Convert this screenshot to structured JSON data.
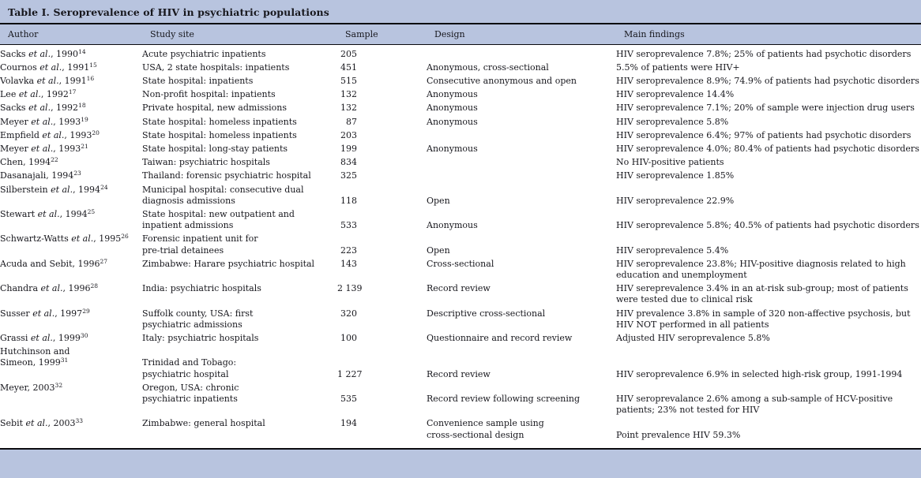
{
  "title": "Table I. Seroprevalence of HIV in psychiatric populations",
  "colors": {
    "band": "#b8c4df",
    "rule": "#0b0b0f",
    "text": "#17171d"
  },
  "table": {
    "columns": [
      "Author",
      "Study site",
      "Sample",
      "Design",
      "Main findings"
    ],
    "rows": [
      {
        "author": [
          "Sacks *et al.*, 1990^14^"
        ],
        "site": [
          "Acute psychiatric inpatients"
        ],
        "sample": [
          "205"
        ],
        "design": [
          ""
        ],
        "findings": [
          "HIV seroprevalence 7.8%; 25% of patients had psychotic disorders"
        ]
      },
      {
        "author": [
          "Cournos *et al.*, 1991^15^"
        ],
        "site": [
          "USA, 2 state hospitals: inpatients"
        ],
        "sample": [
          "451"
        ],
        "design": [
          "Anonymous, cross-sectional"
        ],
        "findings": [
          "5.5% of patients were HIV+"
        ]
      },
      {
        "author": [
          "Volavka *et al.*, 1991^16^"
        ],
        "site": [
          "State hospital: inpatients"
        ],
        "sample": [
          "515"
        ],
        "design": [
          "Consecutive anonymous and open"
        ],
        "findings": [
          "HIV seroprevalence 8.9%; 74.9% of patients had psychotic disorders"
        ]
      },
      {
        "author": [
          "Lee *et al.*, 1992^17^"
        ],
        "site": [
          "Non-profit hospital: inpatients"
        ],
        "sample": [
          "132"
        ],
        "design": [
          "Anonymous"
        ],
        "findings": [
          "HIV seroprevalence 14.4%"
        ]
      },
      {
        "author": [
          "Sacks *et al.*, 1992^18^"
        ],
        "site": [
          "Private hospital, new admissions"
        ],
        "sample": [
          "132"
        ],
        "design": [
          "Anonymous"
        ],
        "findings": [
          "HIV seroprevalence 7.1%; 20% of sample were injection drug users"
        ]
      },
      {
        "author": [
          "Meyer *et al.*, 1993^19^"
        ],
        "site": [
          "State hospital: homeless inpatients"
        ],
        "sample": [
          "87"
        ],
        "design": [
          "Anonymous"
        ],
        "findings": [
          "HIV seroprevalence 5.8%"
        ]
      },
      {
        "author": [
          "Empfield *et al.*, 1993^20^"
        ],
        "site": [
          "State hospital: homeless inpatients"
        ],
        "sample": [
          "203"
        ],
        "design": [
          ""
        ],
        "findings": [
          "HIV seroprevalence 6.4%; 97% of patients had psychotic disorders"
        ]
      },
      {
        "author": [
          "Meyer *et al.*, 1993^21^"
        ],
        "site": [
          "State hospital: long-stay patients"
        ],
        "sample": [
          "199"
        ],
        "design": [
          "Anonymous"
        ],
        "findings": [
          "HIV seroprevalence 4.0%; 80.4% of patients had psychotic disorders"
        ]
      },
      {
        "author": [
          "Chen, 1994^22^"
        ],
        "site": [
          "Taiwan: psychiatric hospitals"
        ],
        "sample": [
          "834"
        ],
        "design": [
          ""
        ],
        "findings": [
          "No HIV-positive patients"
        ]
      },
      {
        "author": [
          "Dasanajali, 1994^23^"
        ],
        "site": [
          "Thailand: forensic psychiatric hospital"
        ],
        "sample": [
          "325"
        ],
        "design": [
          ""
        ],
        "findings": [
          "HIV seroprevalence 1.85%"
        ]
      },
      {
        "author": [
          "Silberstein *et al.*, 1994^24^",
          ""
        ],
        "site": [
          "Municipal hospital: consecutive dual",
          "diagnosis admissions"
        ],
        "sample": [
          "",
          "118"
        ],
        "design": [
          "",
          "Open"
        ],
        "findings": [
          "",
          "HIV seroprevalence 22.9%"
        ]
      },
      {
        "author": [
          "Stewart *et al.*, 1994^25^",
          ""
        ],
        "site": [
          "State hospital: new outpatient and",
          "inpatient admissions"
        ],
        "sample": [
          "",
          "533"
        ],
        "design": [
          "",
          "Anonymous"
        ],
        "findings": [
          "",
          "HIV seroprevalence 5.8%; 40.5% of patients had psychotic disorders"
        ]
      },
      {
        "author": [
          "Schwartz-Watts *et al.*, 1995^26^",
          ""
        ],
        "site": [
          "Forensic inpatient unit for",
          "pre-trial detainees"
        ],
        "sample": [
          "",
          "223"
        ],
        "design": [
          "",
          "Open"
        ],
        "findings": [
          "",
          "HIV seroprevalence 5.4%"
        ]
      },
      {
        "author": [
          "Acuda and Sebit, 1996^27^",
          ""
        ],
        "site": [
          "Zimbabwe: Harare psychiatric hospital",
          ""
        ],
        "sample": [
          "143",
          ""
        ],
        "design": [
          "Cross-sectional",
          ""
        ],
        "findings": [
          "HIV seroprevalence 23.8%; HIV-positive diagnosis related to high",
          "education and unemployment"
        ]
      },
      {
        "author": [
          "Chandra *et al.*, 1996^28^",
          ""
        ],
        "site": [
          "India: psychiatric hospitals",
          ""
        ],
        "sample": [
          "2 139",
          ""
        ],
        "design": [
          "Record review",
          ""
        ],
        "findings": [
          "HIV sereprevalence 3.4% in an at-risk sub-group; most of patients",
          "were tested due to clinical risk"
        ]
      },
      {
        "author": [
          "Susser *et al.*, 1997^29^",
          ""
        ],
        "site": [
          "Suffolk county, USA: first",
          "psychiatric admissions"
        ],
        "sample": [
          "320",
          ""
        ],
        "design": [
          "Descriptive cross-sectional",
          ""
        ],
        "findings": [
          "HIV prevalence 3.8% in sample of 320 non-affective psychosis, but",
          "HIV NOT performed in all patients"
        ]
      },
      {
        "author": [
          "Grassi *et al.*, 1999^30^"
        ],
        "site": [
          "Italy: psychiatric hospitals"
        ],
        "sample": [
          "100"
        ],
        "design": [
          "Questionnaire and record review"
        ],
        "findings": [
          "Adjusted HIV seroprevalence 5.8%"
        ]
      },
      {
        "author": [
          "Hutchinson and",
          "Simeon, 1999^31^",
          ""
        ],
        "site": [
          "",
          "Trinidad and Tobago:",
          "psychiatric hospital"
        ],
        "sample": [
          "",
          "",
          "1 227"
        ],
        "design": [
          "",
          "",
          "Record review"
        ],
        "findings": [
          "",
          "",
          "HIV seroprevalence 6.9% in selected high-risk group, 1991-1994"
        ]
      },
      {
        "author": [
          "Meyer, 2003^32^",
          "",
          ""
        ],
        "site": [
          "Oregon, USA: chronic",
          "psychiatric inpatients",
          ""
        ],
        "sample": [
          "",
          "535",
          ""
        ],
        "design": [
          "",
          "Record review following screening",
          ""
        ],
        "findings": [
          "",
          "HIV seroprevalance 2.6% among a sub-sample of HCV-positive",
          "patients; 23% not tested for HIV"
        ]
      },
      {
        "author": [
          "Sebit *et al.*, 2003^33^",
          ""
        ],
        "site": [
          "Zimbabwe: general hospital",
          ""
        ],
        "sample": [
          "194",
          ""
        ],
        "design": [
          "Convenience sample using",
          "cross-sectional design"
        ],
        "findings": [
          "",
          "Point prevalence HIV 59.3%"
        ]
      }
    ]
  }
}
